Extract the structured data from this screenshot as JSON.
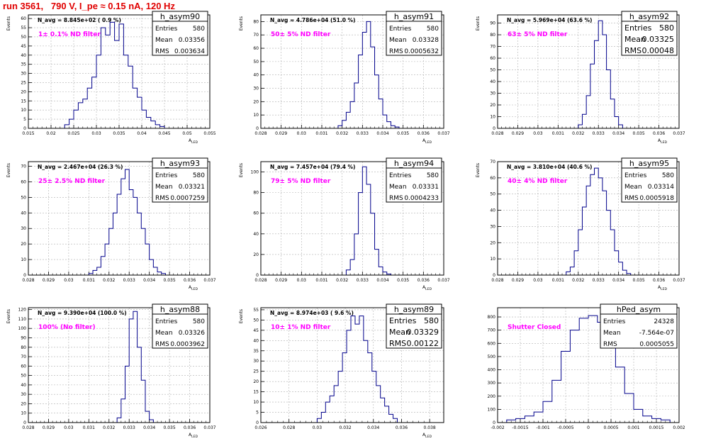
{
  "run_title": "run 3561,   790 V, I_pe ≈ 0.15 nA, 120 Hz",
  "colors": {
    "histogram": "#00008b",
    "annotation": "#ff00ff",
    "title": "#e00000",
    "grid": "#b0b0b0"
  },
  "chart_data": [
    {
      "type": "bar",
      "title": "h_asym90",
      "ylabel": "Events",
      "xlabel": "A_LED",
      "xlim": [
        0.015,
        0.055
      ],
      "ylim": [
        0,
        62
      ],
      "xticks": [
        "0.015",
        "0.02",
        "0.025",
        "0.03",
        "0.035",
        "0.04",
        "0.045",
        "0.05",
        "0.055"
      ],
      "yticks": [
        "0",
        "5",
        "10",
        "15",
        "20",
        "25",
        "30",
        "35",
        "40",
        "45",
        "50",
        "55",
        "60"
      ],
      "nlabel": "N_avg = 8.845e+02 ( 0.9 %)",
      "filter_label": "1± 0.1% ND filter",
      "stats": [
        [
          "Entries",
          "580"
        ],
        [
          "Mean",
          "0.03356"
        ],
        [
          "RMS",
          "0.003634"
        ]
      ],
      "bin_edges": [
        0.023,
        0.024,
        0.025,
        0.026,
        0.027,
        0.028,
        0.029,
        0.03,
        0.031,
        0.032,
        0.033,
        0.034,
        0.035,
        0.036,
        0.037,
        0.038,
        0.039,
        0.04,
        0.041,
        0.042,
        0.043,
        0.044,
        0.045
      ],
      "counts": [
        2,
        5,
        10,
        14,
        16,
        22,
        28,
        40,
        55,
        51,
        58,
        48,
        57,
        40,
        34,
        22,
        17,
        10,
        6,
        4,
        2,
        1
      ]
    },
    {
      "type": "bar",
      "title": "h_asym91",
      "ylabel": "Events",
      "xlabel": "A_LED",
      "xlim": [
        0.028,
        0.037
      ],
      "ylim": [
        0,
        85
      ],
      "xticks": [
        "0.028",
        "0.029",
        "0.03",
        "0.031",
        "0.032",
        "0.033",
        "0.034",
        "0.035",
        "0.036",
        "0.037"
      ],
      "yticks": [
        "0",
        "10",
        "20",
        "30",
        "40",
        "50",
        "60",
        "70",
        "80"
      ],
      "nlabel": "N_avg = 4.786e+04 (51.0 %)",
      "filter_label": "50± 5% ND filter",
      "stats": [
        [
          "Entries",
          "580"
        ],
        [
          "Mean",
          "0.03328"
        ],
        [
          "RMS",
          "0.0005632"
        ]
      ],
      "bin_edges": [
        0.0318,
        0.032,
        0.0322,
        0.0324,
        0.0326,
        0.0328,
        0.033,
        0.0332,
        0.0334,
        0.0336,
        0.0338,
        0.034,
        0.0342,
        0.0344,
        0.0346,
        0.0348
      ],
      "counts": [
        2,
        6,
        12,
        20,
        34,
        55,
        72,
        80,
        61,
        40,
        22,
        10,
        5,
        2,
        1
      ]
    },
    {
      "type": "bar",
      "title": "h_asym92",
      "ylabel": "Events",
      "xlabel": "A_LED",
      "xlim": [
        0.028,
        0.037
      ],
      "ylim": [
        0,
        97
      ],
      "xticks": [
        "0.028",
        "0.029",
        "0.03",
        "0.031",
        "0.032",
        "0.033",
        "0.034",
        "0.035",
        "0.036",
        "0.037"
      ],
      "yticks": [
        "0",
        "10",
        "20",
        "30",
        "40",
        "50",
        "60",
        "70",
        "80",
        "90"
      ],
      "nlabel": "N_avg = 5.969e+04 (63.6 %)",
      "filter_label": "63± 5% ND filter",
      "stats": [
        [
          "Entries",
          "580"
        ],
        [
          "Mean",
          "0.03325"
        ],
        [
          "RMS",
          "0.00048"
        ]
      ],
      "bin_edges": [
        0.032,
        0.0322,
        0.0324,
        0.0326,
        0.0328,
        0.033,
        0.0332,
        0.0334,
        0.0336,
        0.0338,
        0.034,
        0.0342
      ],
      "counts": [
        3,
        12,
        28,
        55,
        75,
        92,
        80,
        50,
        25,
        10,
        3
      ]
    },
    {
      "type": "bar",
      "title": "h_asym93",
      "ylabel": "Events",
      "xlabel": "A_LED",
      "xlim": [
        0.028,
        0.037
      ],
      "ylim": [
        0,
        73
      ],
      "xticks": [
        "0.028",
        "0.029",
        "0.03",
        "0.031",
        "0.032",
        "0.033",
        "0.034",
        "0.035",
        "0.036",
        "0.037"
      ],
      "yticks": [
        "0",
        "10",
        "20",
        "30",
        "40",
        "50",
        "60",
        "70"
      ],
      "nlabel": "N_avg = 2.467e+04 (26.3 %)",
      "filter_label": "25± 2.5% ND filter",
      "stats": [
        [
          "Entries",
          "580"
        ],
        [
          "Mean",
          "0.03321"
        ],
        [
          "RMS",
          "0.0007259"
        ]
      ],
      "bin_edges": [
        0.031,
        0.0312,
        0.0314,
        0.0316,
        0.0318,
        0.032,
        0.0322,
        0.0324,
        0.0326,
        0.0328,
        0.033,
        0.0332,
        0.0334,
        0.0336,
        0.0338,
        0.034,
        0.0342,
        0.0344,
        0.0346,
        0.0348
      ],
      "counts": [
        1,
        3,
        5,
        12,
        20,
        30,
        40,
        52,
        62,
        68,
        55,
        50,
        40,
        30,
        20,
        10,
        5,
        2,
        1
      ]
    },
    {
      "type": "bar",
      "title": "h_asym94",
      "ylabel": "Events",
      "xlabel": "A_LED",
      "xlim": [
        0.028,
        0.037
      ],
      "ylim": [
        0,
        110
      ],
      "xticks": [
        "0.028",
        "0.029",
        "0.03",
        "0.031",
        "0.032",
        "0.033",
        "0.034",
        "0.035",
        "0.036",
        "0.037"
      ],
      "yticks": [
        "0",
        "20",
        "40",
        "60",
        "80",
        "100"
      ],
      "nlabel": "N_avg = 7.457e+04 (79.4 %)",
      "filter_label": "79± 5% ND filter",
      "stats": [
        [
          "Entries",
          "580"
        ],
        [
          "Mean",
          "0.03331"
        ],
        [
          "RMS",
          "0.0004233"
        ]
      ],
      "bin_edges": [
        0.0322,
        0.0324,
        0.0326,
        0.0328,
        0.033,
        0.0332,
        0.0334,
        0.0336,
        0.0338,
        0.034,
        0.0342,
        0.0344
      ],
      "counts": [
        5,
        15,
        40,
        80,
        105,
        88,
        60,
        25,
        8,
        3,
        1
      ]
    },
    {
      "type": "bar",
      "title": "h_asym95",
      "ylabel": "Events",
      "xlabel": "A_LED",
      "xlim": [
        0.028,
        0.037
      ],
      "ylim": [
        0,
        70
      ],
      "xticks": [
        "0.028",
        "0.029",
        "0.03",
        "0.031",
        "0.032",
        "0.033",
        "0.034",
        "0.035",
        "0.036",
        "0.037"
      ],
      "yticks": [
        "0",
        "10",
        "20",
        "30",
        "40",
        "50",
        "60",
        "70"
      ],
      "nlabel": "N_avg = 3.810e+04 (40.6 %)",
      "filter_label": "40± 4% ND filter",
      "stats": [
        [
          "Entries",
          "580"
        ],
        [
          "Mean",
          "0.03314"
        ],
        [
          "RMS",
          "0.0005918"
        ]
      ],
      "bin_edges": [
        0.0314,
        0.0316,
        0.0318,
        0.032,
        0.0322,
        0.0324,
        0.0326,
        0.0328,
        0.033,
        0.0332,
        0.0334,
        0.0336,
        0.0338,
        0.034,
        0.0342,
        0.0344,
        0.0346
      ],
      "counts": [
        2,
        5,
        15,
        28,
        42,
        55,
        62,
        66,
        60,
        52,
        40,
        28,
        15,
        8,
        3,
        1
      ]
    },
    {
      "type": "bar",
      "title": "h_asym88",
      "ylabel": "Events",
      "xlabel": "A_LED",
      "xlim": [
        0.028,
        0.037
      ],
      "ylim": [
        0,
        122
      ],
      "xticks": [
        "0.028",
        "0.029",
        "0.03",
        "0.031",
        "0.032",
        "0.033",
        "0.034",
        "0.035",
        "0.036",
        "0.037"
      ],
      "yticks": [
        "0",
        "10",
        "20",
        "30",
        "40",
        "50",
        "60",
        "70",
        "80",
        "90",
        "100",
        "110",
        "120"
      ],
      "nlabel": "N_avg = 9.390e+04 (100.0 %)",
      "filter_label": "100% (No filter)",
      "stats": [
        [
          "Entries",
          "580"
        ],
        [
          "Mean",
          "0.03326"
        ],
        [
          "RMS",
          "0.0003962"
        ]
      ],
      "bin_edges": [
        0.0324,
        0.0326,
        0.0328,
        0.033,
        0.0332,
        0.0334,
        0.0336,
        0.0338,
        0.034,
        0.0342
      ],
      "counts": [
        5,
        25,
        60,
        110,
        118,
        80,
        45,
        12,
        3
      ]
    },
    {
      "type": "bar",
      "title": "h_asym89",
      "ylabel": "Events",
      "xlabel": "A_LED",
      "xlim": [
        0.026,
        0.039
      ],
      "ylim": [
        0,
        56
      ],
      "xticks": [
        "0.026",
        "0.028",
        "0.03",
        "0.032",
        "0.034",
        "0.036",
        "0.038"
      ],
      "yticks": [
        "0",
        "5",
        "10",
        "15",
        "20",
        "25",
        "30",
        "35",
        "40",
        "45",
        "50",
        "55"
      ],
      "nlabel": "N_avg = 8.974e+03 ( 9.6 %)",
      "filter_label": "10± 1% ND filter",
      "stats": [
        [
          "Entries",
          "580"
        ],
        [
          "Mean",
          "0.03329"
        ],
        [
          "RMS",
          "0.00122"
        ]
      ],
      "bin_edges": [
        0.03,
        0.0303,
        0.0306,
        0.0309,
        0.0312,
        0.0315,
        0.0318,
        0.0321,
        0.0324,
        0.0327,
        0.033,
        0.0333,
        0.0336,
        0.0339,
        0.0342,
        0.0345,
        0.0348,
        0.0351,
        0.0354,
        0.0357
      ],
      "counts": [
        2,
        5,
        10,
        13,
        18,
        25,
        34,
        45,
        52,
        48,
        52,
        40,
        34,
        25,
        18,
        12,
        8,
        4,
        2
      ]
    },
    {
      "type": "bar",
      "title": "hPed_asym",
      "ylabel": "",
      "xlabel": "",
      "xlim": [
        -0.002,
        0.002
      ],
      "ylim": [
        0,
        870
      ],
      "xticks": [
        "-0.002",
        "-0.0015",
        "-0.001",
        "-0.0005",
        "0",
        "0.0005",
        "0.001",
        "0.0015",
        "0.002"
      ],
      "yticks": [
        "0",
        "100",
        "200",
        "300",
        "400",
        "500",
        "600",
        "700",
        "800"
      ],
      "nlabel": "",
      "filter_label": "Shutter Closed",
      "stats": [
        [
          "Entries",
          "24328"
        ],
        [
          "Mean",
          "-7.564e-07"
        ],
        [
          "RMS",
          "0.0005055"
        ]
      ],
      "bin_edges": [
        -0.0018,
        -0.0016,
        -0.0014,
        -0.0012,
        -0.001,
        -0.0008,
        -0.0006,
        -0.0004,
        -0.0002,
        0.0,
        0.0002,
        0.0004,
        0.0006,
        0.0008,
        0.001,
        0.0012,
        0.0014,
        0.0016,
        0.0018
      ],
      "counts": [
        20,
        30,
        50,
        80,
        160,
        320,
        540,
        700,
        790,
        810,
        760,
        620,
        420,
        220,
        100,
        50,
        30,
        20
      ]
    }
  ]
}
